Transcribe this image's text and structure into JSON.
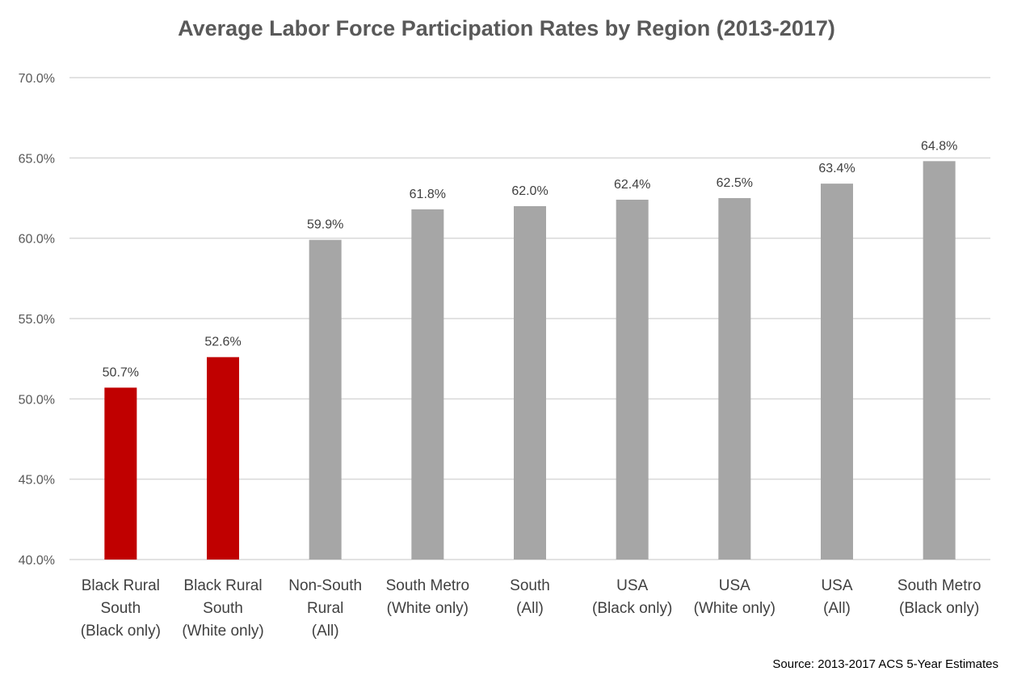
{
  "title": "Average Labor Force Participation Rates by Region (2013-2017)",
  "source": "Source: 2013-2017 ACS 5-Year Estimates",
  "colors": {
    "highlight": "#c00000",
    "default": "#a6a6a6",
    "grid": "#d9d9d9"
  },
  "chart_data": {
    "type": "bar",
    "title": "Average Labor Force Participation Rates by Region (2013-2017)",
    "categories": [
      [
        "Black Rural",
        "South",
        "(Black only)"
      ],
      [
        "Black Rural",
        "South",
        "(White only)"
      ],
      [
        "Non-South",
        "Rural",
        "(All)"
      ],
      [
        "South Metro",
        "(White only)"
      ],
      [
        "South",
        "(All)"
      ],
      [
        "USA",
        "(Black only)"
      ],
      [
        "USA",
        "(White only)"
      ],
      [
        "USA",
        "(All)"
      ],
      [
        "South Metro",
        "(Black only)"
      ]
    ],
    "values": [
      50.7,
      52.6,
      59.9,
      61.8,
      62.0,
      62.4,
      62.5,
      63.4,
      64.8
    ],
    "data_labels": [
      "50.7%",
      "52.6%",
      "59.9%",
      "61.8%",
      "62.0%",
      "62.4%",
      "62.5%",
      "63.4%",
      "64.8%"
    ],
    "highlighted": [
      true,
      true,
      false,
      false,
      false,
      false,
      false,
      false,
      false
    ],
    "ylim": [
      40,
      70
    ],
    "yticks": [
      "40.0%",
      "45.0%",
      "50.0%",
      "55.0%",
      "60.0%",
      "65.0%",
      "70.0%"
    ],
    "ytick_values": [
      40,
      45,
      50,
      55,
      60,
      65,
      70
    ],
    "xlabel": "",
    "ylabel": "",
    "grid": true,
    "legend": "none"
  }
}
